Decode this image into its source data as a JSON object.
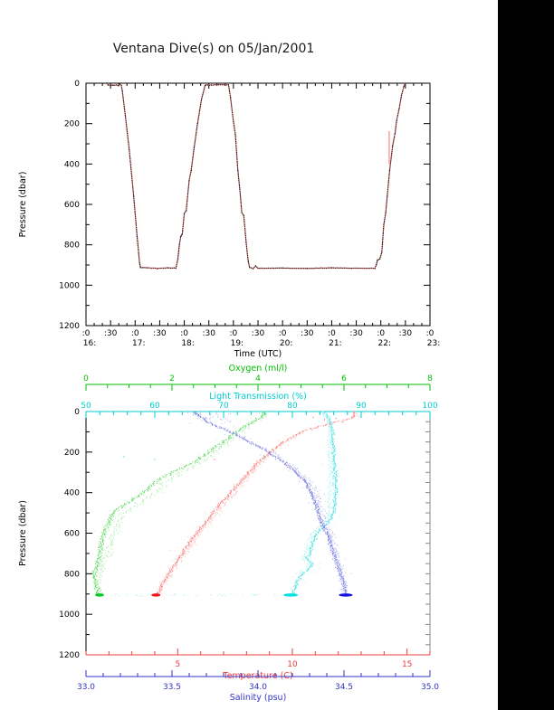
{
  "title": "Ventana Dive(s) on 05/Jan/2001",
  "colors": {
    "background": "#ffffff",
    "band": "#000000",
    "frame": "#000000",
    "text": "#000000",
    "right_axis": "#888888",
    "oxygen": {
      "axis": "#00c000",
      "dot": "#55d855",
      "pale": "#a6eca6",
      "blob": "#00cc22"
    },
    "light": {
      "axis": "#00cccc",
      "dot": "#4ee0e0",
      "pale": "#aef2f2",
      "blob": "#00e0e0"
    },
    "temp": {
      "axis": "#ee3b3b",
      "line": "#ff7070",
      "dot": "#f87c7c",
      "pale": "#fbbaba",
      "blob": "#ee1818"
    },
    "sal": {
      "axis": "#3333cc",
      "dot": "#6f6fe0",
      "pale": "#b2b2f2",
      "blob": "#1111dd"
    }
  },
  "chart_data": [
    {
      "type": "line",
      "name": "dive-depth-vs-time",
      "xlabel": "Time (UTC)",
      "ylabel": "Pressure (dbar)",
      "xlim": [
        16,
        23
      ],
      "ylim": [
        0,
        1200
      ],
      "y_inverted": true,
      "x_major_step_hours": 0.5,
      "x_minute_labels": {
        "on_hour": ":0",
        "on_half": ":30"
      },
      "x_hour_labels": [
        "16:",
        "17:",
        "18:",
        "19:",
        "20:",
        "21:",
        "22:",
        "23:"
      ],
      "y_ticks": [
        0,
        200,
        400,
        600,
        800,
        1000,
        1200
      ],
      "y_tick_labels": [
        "0",
        "200",
        "400",
        "600",
        "800",
        "1000",
        "1200"
      ],
      "series": [
        {
          "name": "vehicle-pressure",
          "color_key": "temp",
          "points": [
            [
              16.42,
              1
            ],
            [
              16.45,
              9
            ],
            [
              16.55,
              10
            ],
            [
              16.62,
              9
            ],
            [
              16.66,
              13
            ],
            [
              16.69,
              5
            ],
            [
              16.72,
              12
            ],
            [
              16.74,
              40
            ],
            [
              16.8,
              160
            ],
            [
              16.88,
              330
            ],
            [
              16.97,
              560
            ],
            [
              17.04,
              760
            ],
            [
              17.09,
              890
            ],
            [
              17.11,
              912
            ],
            [
              17.25,
              914
            ],
            [
              17.45,
              917
            ],
            [
              17.65,
              914
            ],
            [
              17.83,
              916
            ],
            [
              17.87,
              870
            ],
            [
              17.9,
              800
            ],
            [
              17.93,
              758
            ],
            [
              17.96,
              746
            ],
            [
              18.0,
              644
            ],
            [
              18.04,
              630
            ],
            [
              18.1,
              480
            ],
            [
              18.14,
              432
            ],
            [
              18.2,
              320
            ],
            [
              18.27,
              200
            ],
            [
              18.35,
              80
            ],
            [
              18.42,
              14
            ],
            [
              18.44,
              8
            ],
            [
              18.55,
              9
            ],
            [
              18.7,
              7
            ],
            [
              18.9,
              8
            ],
            [
              18.94,
              70
            ],
            [
              19.0,
              190
            ],
            [
              19.04,
              255
            ],
            [
              19.09,
              430
            ],
            [
              19.13,
              525
            ],
            [
              19.17,
              640
            ],
            [
              19.21,
              655
            ],
            [
              19.26,
              790
            ],
            [
              19.3,
              880
            ],
            [
              19.33,
              912
            ],
            [
              19.4,
              918
            ],
            [
              19.45,
              905
            ],
            [
              19.5,
              916
            ],
            [
              20.0,
              915
            ],
            [
              20.5,
              917
            ],
            [
              21.0,
              914
            ],
            [
              21.4,
              916
            ],
            [
              21.88,
              916
            ],
            [
              21.91,
              898
            ],
            [
              21.93,
              876
            ],
            [
              21.98,
              870
            ],
            [
              22.02,
              836
            ],
            [
              22.06,
              700
            ],
            [
              22.1,
              640
            ],
            [
              22.13,
              560
            ],
            [
              22.18,
              430
            ],
            [
              22.24,
              310
            ],
            [
              22.29,
              246
            ],
            [
              22.32,
              186
            ],
            [
              22.37,
              130
            ],
            [
              22.42,
              60
            ],
            [
              22.47,
              14
            ],
            [
              22.5,
              0
            ]
          ]
        }
      ],
      "glitch_spike": {
        "time": 22.17,
        "p_from": 237,
        "p_to": 400
      }
    },
    {
      "type": "scatter",
      "name": "ctd-profiles-vs-pressure",
      "ylabel": "Pressure (dbar)",
      "ylim": [
        0,
        1200
      ],
      "y_inverted": true,
      "y_ticks": [
        0,
        200,
        400,
        600,
        800,
        1000,
        1200
      ],
      "y_tick_labels": [
        "0",
        "200",
        "400",
        "600",
        "800",
        "1000",
        "1200"
      ],
      "axes": [
        {
          "title": "Oxygen (ml/l)",
          "color_key": "oxygen",
          "range": [
            0,
            8
          ],
          "ticks": [
            0,
            2,
            4,
            6,
            8
          ],
          "tick_labels": [
            "0",
            "2",
            "4",
            "6",
            "8"
          ],
          "minor_step": 0.5,
          "position": "top-detached"
        },
        {
          "title": "Light Transmission (%)",
          "color_key": "light",
          "range": [
            50,
            100
          ],
          "ticks": [
            50,
            60,
            70,
            80,
            90,
            100
          ],
          "tick_labels": [
            "50",
            "60",
            "70",
            "80",
            "90",
            "100"
          ],
          "minor_step": 2,
          "position": "top"
        },
        {
          "title": "Temperature (C)",
          "color_key": "temp",
          "range": [
            1,
            16
          ],
          "ticks": [
            5,
            10,
            15
          ],
          "tick_labels": [
            "5",
            "10",
            "15"
          ],
          "minor_step": 1,
          "position": "bottom"
        },
        {
          "title": "Salinity (psu)",
          "color_key": "sal",
          "range": [
            33,
            35
          ],
          "ticks": [
            33.0,
            33.5,
            34.0,
            34.5,
            35.0
          ],
          "tick_labels": [
            "33.0",
            "33.5",
            "34.0",
            "34.5",
            "35.0"
          ],
          "minor_step": 0.1,
          "position": "bottom-detached"
        }
      ],
      "series": [
        {
          "name": "oxygen-profile",
          "axis": 0,
          "color_key": "oxygen",
          "jitter": 0.07,
          "upcast_offset": 0.28,
          "profile": [
            [
              0,
              4.15
            ],
            [
              30,
              4.05
            ],
            [
              60,
              3.8
            ],
            [
              100,
              3.5
            ],
            [
              150,
              3.2
            ],
            [
              200,
              2.85
            ],
            [
              250,
              2.5
            ],
            [
              300,
              2.0
            ],
            [
              350,
              1.6
            ],
            [
              400,
              1.35
            ],
            [
              450,
              0.95
            ],
            [
              500,
              0.63
            ],
            [
              550,
              0.5
            ],
            [
              600,
              0.42
            ],
            [
              650,
              0.36
            ],
            [
              700,
              0.32
            ],
            [
              750,
              0.26
            ],
            [
              800,
              0.21
            ],
            [
              850,
              0.22
            ],
            [
              905,
              0.3
            ]
          ],
          "bottom_blob": {
            "pressure": 905,
            "value_range": [
              0.21,
              0.42
            ]
          },
          "extra_dots": []
        },
        {
          "name": "light-transmission-profile",
          "axis": 1,
          "color_key": "light",
          "jitter": 0.3,
          "upcast_offset": -0.8,
          "profile": [
            [
              0,
              84.5
            ],
            [
              30,
              85.2
            ],
            [
              60,
              85.6
            ],
            [
              100,
              85.8
            ],
            [
              200,
              86.0
            ],
            [
              300,
              86.2
            ],
            [
              400,
              86.3
            ],
            [
              500,
              86.0
            ],
            [
              550,
              85.2
            ],
            [
              600,
              83.5
            ],
            [
              650,
              82.9
            ],
            [
              700,
              82.6
            ],
            [
              723,
              82.0
            ],
            [
              750,
              83.0
            ],
            [
              770,
              82.5
            ],
            [
              800,
              81.5
            ],
            [
              850,
              80.6
            ],
            [
              905,
              80.0
            ]
          ],
          "bottom_blob": {
            "pressure": 905,
            "value_range": [
              78.7,
              80.8
            ]
          },
          "bottom_scatter": {
            "pressure": 905,
            "value_range": [
              53,
              81
            ],
            "count": 60
          },
          "extra_dots": [
            [
              55.5,
              223
            ],
            [
              60,
              236
            ],
            [
              76,
              228
            ]
          ]
        },
        {
          "name": "temperature-profile",
          "axis": 2,
          "color_key": "temp",
          "jitter": 0.09,
          "upcast_offset": 0.16,
          "profile": [
            [
              0,
              12.7
            ],
            [
              30,
              12.68
            ],
            [
              60,
              11.6
            ],
            [
              100,
              10.4
            ],
            [
              150,
              9.6
            ],
            [
              200,
              9.0
            ],
            [
              250,
              8.5
            ],
            [
              300,
              8.1
            ],
            [
              350,
              7.7
            ],
            [
              400,
              7.3
            ],
            [
              450,
              6.9
            ],
            [
              500,
              6.55
            ],
            [
              550,
              6.2
            ],
            [
              600,
              5.8
            ],
            [
              650,
              5.5
            ],
            [
              700,
              5.2
            ],
            [
              750,
              4.9
            ],
            [
              800,
              4.6
            ],
            [
              850,
              4.35
            ],
            [
              905,
              4.1
            ]
          ],
          "bottom_blob": {
            "pressure": 905,
            "value_range": [
              3.85,
              4.25
            ]
          },
          "extra_dots": [
            [
              11.4,
              40
            ],
            [
              11.9,
              34
            ],
            [
              12.2,
              52
            ],
            [
              10.9,
              28
            ],
            [
              6.6,
              237
            ]
          ]
        },
        {
          "name": "salinity-profile",
          "axis": 3,
          "color_key": "sal",
          "jitter": 0.013,
          "upcast_offset": 0.025,
          "profile": [
            [
              0,
              33.63
            ],
            [
              50,
              33.7
            ],
            [
              100,
              33.84
            ],
            [
              150,
              33.95
            ],
            [
              200,
              34.06
            ],
            [
              250,
              34.15
            ],
            [
              300,
              34.22
            ],
            [
              350,
              34.28
            ],
            [
              400,
              34.31
            ],
            [
              450,
              34.33
            ],
            [
              500,
              34.35
            ],
            [
              550,
              34.37
            ],
            [
              600,
              34.4
            ],
            [
              650,
              34.42
            ],
            [
              700,
              34.44
            ],
            [
              750,
              34.46
            ],
            [
              800,
              34.48
            ],
            [
              850,
              34.5
            ],
            [
              905,
              34.51
            ]
          ],
          "bottom_blob": {
            "pressure": 905,
            "value_range": [
              34.47,
              34.55
            ]
          },
          "surface_scatter": {
            "pressure_range": [
              3,
              58
            ],
            "value_range": [
              33.6,
              33.85
            ],
            "count": 24
          },
          "extra_dots": []
        }
      ]
    }
  ]
}
